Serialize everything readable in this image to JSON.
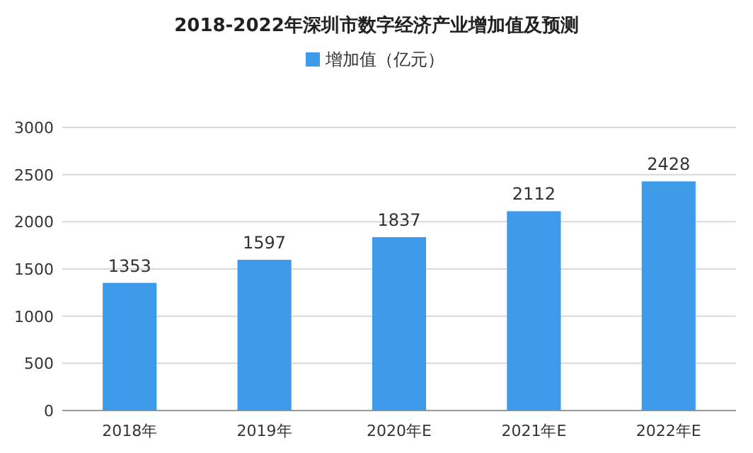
{
  "chart_data": {
    "type": "bar",
    "title": "2018-2022年深圳市数字经济产业增加值及预测",
    "categories": [
      "2018年",
      "2019年",
      "2020年E",
      "2021年E",
      "2022年E"
    ],
    "series": [
      {
        "name": "增加值（亿元）",
        "color": "#3d9be9",
        "values": [
          1353,
          1597,
          1837,
          2112,
          2428
        ]
      }
    ],
    "ylim": [
      0,
      3000
    ],
    "yticks": [
      0,
      500,
      1000,
      1500,
      2000,
      2500,
      3000
    ],
    "grid": "y",
    "legend": "top",
    "data_labels": true
  }
}
